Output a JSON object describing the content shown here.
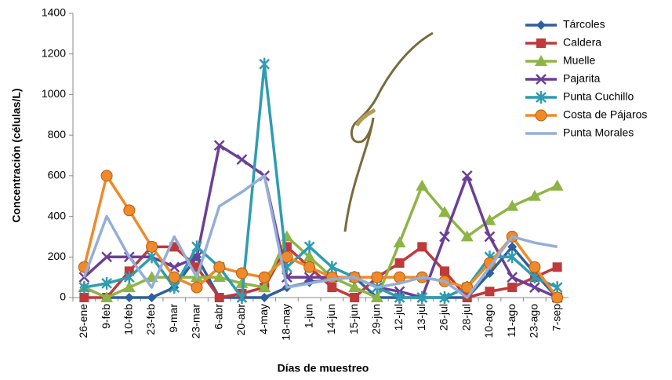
{
  "chart_data": {
    "type": "line",
    "y_label": "Concentración (células/L)",
    "x_label": "Días de muestreo",
    "categories": [
      "26-ene",
      "9-feb",
      "10-feb",
      "23-feb",
      "9-mar",
      "23-mar",
      "6-abr",
      "20-abr",
      "4-may",
      "18-may",
      "1-jun",
      "14-jun",
      "15-jun",
      "29-jun",
      "12-jul",
      "13-jul",
      "26-jul",
      "28-jul",
      "10-ago",
      "11-ago",
      "23-ago",
      "7-sep"
    ],
    "ylim": [
      0,
      1400
    ],
    "yticks": [
      0,
      200,
      400,
      600,
      800,
      1000,
      1200,
      1400
    ],
    "legend": "right",
    "series": [
      {
        "name": "Tárcoles",
        "color": "#2e5f9e",
        "marker": "diamond",
        "values": [
          50,
          0,
          0,
          0,
          50,
          200,
          0,
          0,
          0,
          50,
          75,
          90,
          100,
          0,
          0,
          0,
          0,
          0,
          120,
          250,
          120,
          0
        ]
      },
      {
        "name": "Caldera",
        "color": "#c0393b",
        "marker": "square",
        "values": [
          0,
          0,
          130,
          250,
          250,
          150,
          0,
          20,
          50,
          250,
          150,
          50,
          0,
          100,
          170,
          250,
          130,
          0,
          30,
          50,
          100,
          150
        ]
      },
      {
        "name": "Muelle",
        "color": "#8db545",
        "marker": "triangle",
        "values": [
          50,
          0,
          50,
          100,
          100,
          100,
          100,
          70,
          50,
          300,
          200,
          100,
          50,
          0,
          270,
          550,
          420,
          300,
          380,
          450,
          500,
          550
        ]
      },
      {
        "name": "Pajarita",
        "color": "#6b3f96",
        "marker": "x",
        "values": [
          100,
          200,
          200,
          200,
          150,
          200,
          750,
          680,
          600,
          100,
          100,
          100,
          100,
          50,
          30,
          0,
          300,
          600,
          300,
          100,
          50,
          0
        ]
      },
      {
        "name": "Punta Cuchillo",
        "color": "#2f9cb0",
        "marker": "star",
        "values": [
          50,
          70,
          100,
          200,
          50,
          250,
          150,
          0,
          1150,
          150,
          250,
          150,
          100,
          50,
          0,
          0,
          0,
          50,
          200,
          200,
          100,
          50
        ]
      },
      {
        "name": "Costa de Pájaros",
        "color": "#ef8a2a",
        "marker": "circle",
        "values": [
          150,
          600,
          430,
          250,
          100,
          50,
          150,
          120,
          100,
          200,
          150,
          100,
          100,
          100,
          100,
          100,
          80,
          50,
          170,
          300,
          150,
          0
        ]
      },
      {
        "name": "Punta Morales",
        "color": "#94aed8",
        "marker": "none",
        "values": [
          100,
          400,
          200,
          50,
          300,
          100,
          450,
          520,
          600,
          50,
          70,
          90,
          100,
          50,
          70,
          100,
          80,
          0,
          150,
          300,
          270,
          250
        ]
      }
    ]
  }
}
